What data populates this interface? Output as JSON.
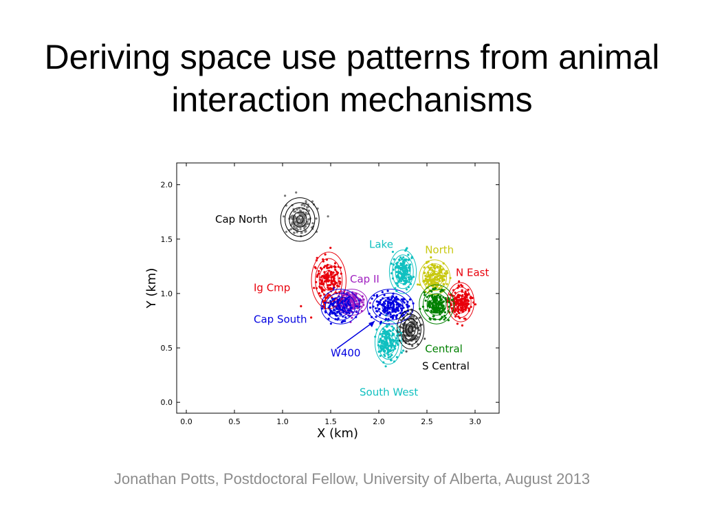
{
  "slide": {
    "title": "Deriving space use patterns from animal interaction mechanisms",
    "footer": "Jonathan Potts, Postdoctoral Fellow, University of Alberta, August 2013"
  },
  "chart_data": {
    "type": "scatter",
    "xlabel": "X (km)",
    "ylabel": "Y (km)",
    "xlim": [
      -0.1,
      3.25
    ],
    "ylim": [
      -0.1,
      2.2
    ],
    "xticks": [
      "0.0",
      "0.5",
      "1.0",
      "1.5",
      "2.0",
      "2.5",
      "3.0"
    ],
    "yticks": [
      "0.0",
      "0.5",
      "1.0",
      "1.5",
      "2.0"
    ],
    "grid": false,
    "series": [
      {
        "name": "Cap North",
        "color": "#000000",
        "point_color": "#777777",
        "center": [
          1.18,
          1.68
        ],
        "spread": [
          0.1,
          0.1
        ],
        "label_pos": [
          0.3,
          1.65
        ]
      },
      {
        "name": "Ig Cmp",
        "color": "#e8000b",
        "point_color": "#e8000b",
        "center": [
          1.48,
          1.12
        ],
        "spread": [
          0.09,
          0.13
        ],
        "label_pos": [
          0.7,
          1.02
        ]
      },
      {
        "name": "Cap II",
        "color": "#a020c0",
        "point_color": "#a020c0",
        "center": [
          1.72,
          0.92
        ],
        "spread": [
          0.08,
          0.06
        ],
        "label_pos": [
          1.7,
          1.1
        ]
      },
      {
        "name": "Cap South",
        "color": "#0000e0",
        "point_color": "#0000e0",
        "center": [
          1.6,
          0.88
        ],
        "spread": [
          0.1,
          0.08
        ],
        "label_pos": [
          0.7,
          0.73
        ]
      },
      {
        "name": "W400",
        "color": "#0000e0",
        "point_color": "#0000e0",
        "center": [
          2.12,
          0.88
        ],
        "spread": [
          0.12,
          0.08
        ],
        "label_pos": [
          1.5,
          0.42
        ]
      },
      {
        "name": "Lake",
        "color": "#10c0c0",
        "point_color": "#10c0c0",
        "center": [
          2.25,
          1.2
        ],
        "spread": [
          0.07,
          0.1
        ],
        "label_pos": [
          1.9,
          1.42
        ]
      },
      {
        "name": "North",
        "color": "#c8c810",
        "point_color": "#c8c810",
        "center": [
          2.58,
          1.15
        ],
        "spread": [
          0.08,
          0.08
        ],
        "label_pos": [
          2.48,
          1.37
        ]
      },
      {
        "name": "N East",
        "color": "#e8000b",
        "point_color": "#e8000b",
        "center": [
          2.85,
          0.92
        ],
        "spread": [
          0.07,
          0.09
        ],
        "label_pos": [
          2.8,
          1.16
        ]
      },
      {
        "name": "Central",
        "color": "#008000",
        "point_color": "#008000",
        "center": [
          2.6,
          0.9
        ],
        "spread": [
          0.09,
          0.09
        ],
        "label_pos": [
          2.48,
          0.46
        ]
      },
      {
        "name": "S Central",
        "color": "#000000",
        "point_color": "#555555",
        "center": [
          2.33,
          0.67
        ],
        "spread": [
          0.07,
          0.09
        ],
        "label_pos": [
          2.45,
          0.3
        ]
      },
      {
        "name": "South West",
        "color": "#10c0c0",
        "point_color": "#10c0c0",
        "center": [
          2.1,
          0.55
        ],
        "spread": [
          0.07,
          0.1
        ],
        "label_pos": [
          1.8,
          0.06
        ]
      }
    ]
  }
}
